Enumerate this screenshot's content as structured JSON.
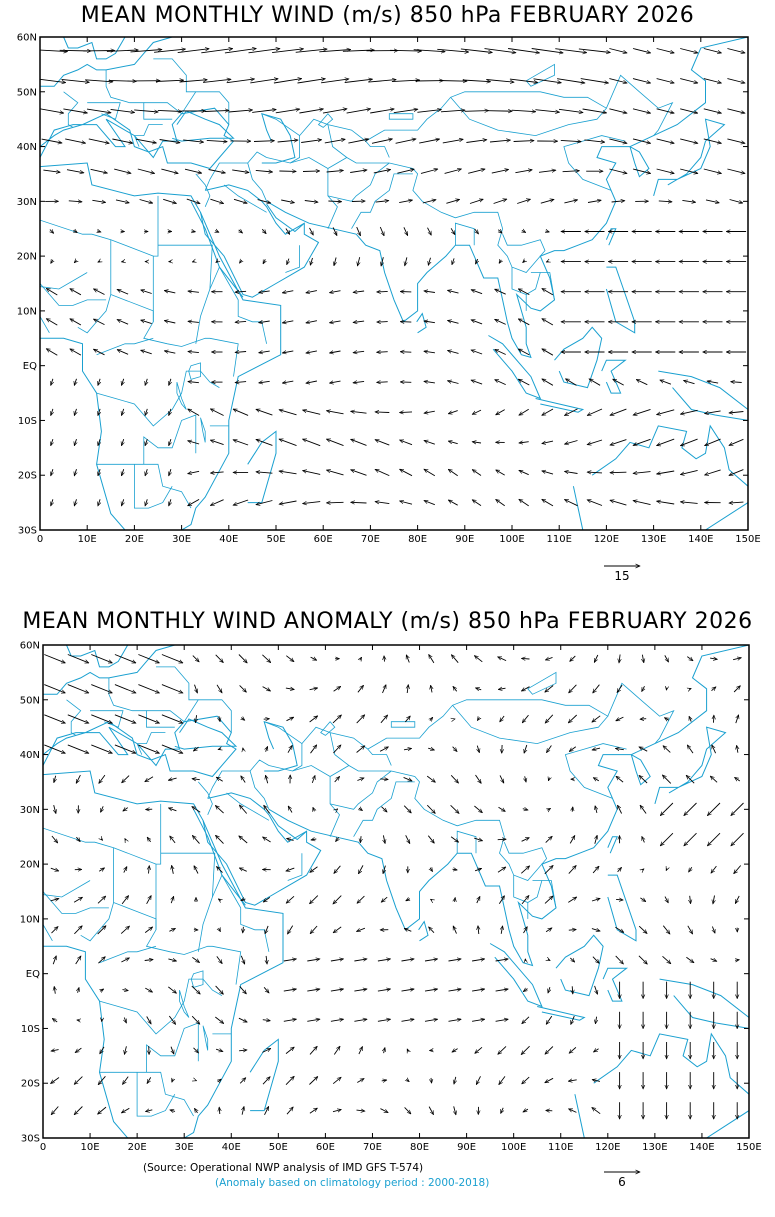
{
  "top_panel": {
    "title": "MEAN MONTHLY WIND (m/s) 850 hPa FEBRUARY 2026",
    "reference_vector": {
      "label": "15",
      "magnitude": 15
    }
  },
  "bottom_panel": {
    "title": "MEAN MONTHLY WIND ANOMALY (m/s) 850 hPa FEBRUARY 2026",
    "reference_vector": {
      "label": "6",
      "magnitude": 6
    },
    "source_note": "(Source: Operational NWP analysis of IMD GFS T-574)",
    "climatology_note": "(Anomaly based on climatology period : 2000-2018)"
  },
  "map": {
    "lon_range": [
      0,
      150
    ],
    "lat_range": [
      -30,
      60
    ],
    "lon_ticks": [
      "0",
      "10E",
      "20E",
      "30E",
      "40E",
      "50E",
      "60E",
      "70E",
      "80E",
      "90E",
      "100E",
      "110E",
      "120E",
      "130E",
      "140E",
      "150E"
    ],
    "lat_ticks": [
      "30S",
      "20S",
      "10S",
      "EQ",
      "10N",
      "20N",
      "30N",
      "40N",
      "50N",
      "60N"
    ],
    "coastline_color": "#1aa0d0",
    "vector_color": "#000000",
    "note_color": "#1aa0d0"
  }
}
